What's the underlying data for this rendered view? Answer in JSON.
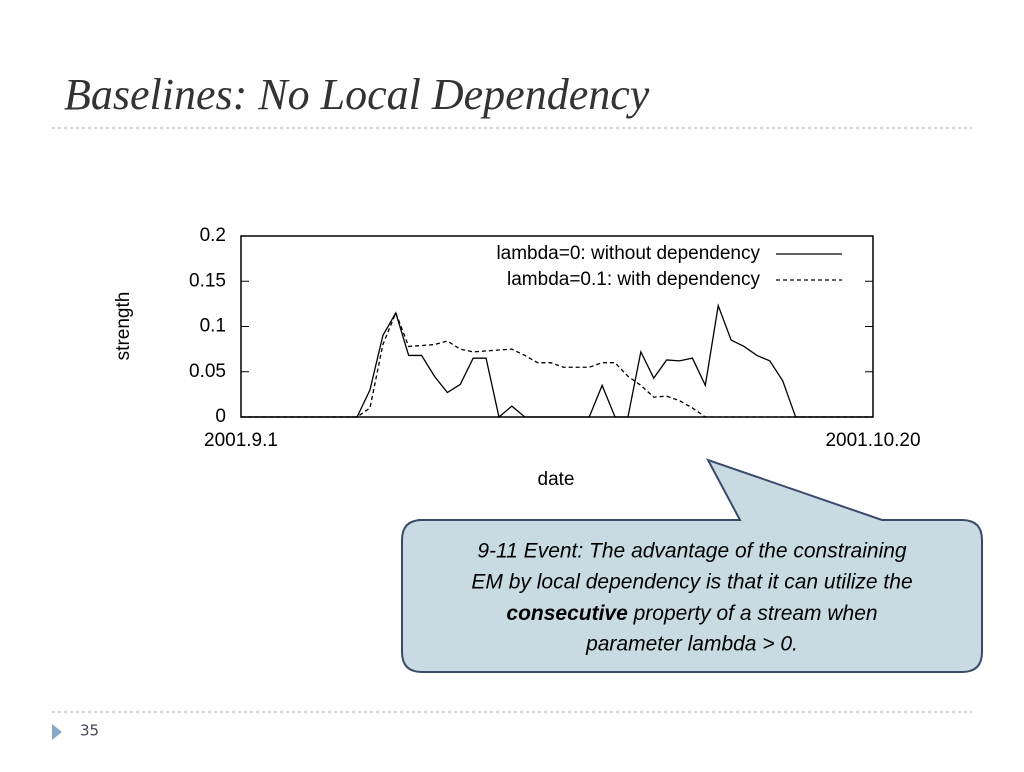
{
  "slide_title": "Baselines: No Local Dependency",
  "page_number": "35",
  "callout": {
    "lines": [
      "9-11 Event: The advantage of the constraining",
      "EM by local dependency is that it can utilize the"
    ],
    "bold": "consecutive",
    "after_bold": " property of a stream when",
    "last_line": "parameter lambda > 0."
  },
  "chart_data": {
    "type": "line",
    "xlabel": "date",
    "ylabel": "strength",
    "x": [
      0,
      1,
      2,
      3,
      4,
      5,
      6,
      7,
      8,
      9,
      10,
      11,
      12,
      13,
      14,
      15,
      16,
      17,
      18,
      19,
      20,
      21,
      22,
      23,
      24,
      25,
      26,
      27,
      28,
      29,
      30,
      31,
      32,
      33,
      34,
      35,
      36,
      37,
      38,
      39,
      40,
      41,
      42,
      43,
      44,
      45,
      46,
      47,
      48,
      49
    ],
    "xlim": [
      0,
      49
    ],
    "xticks": [
      {
        "value": 0,
        "label": "2001.9.1"
      },
      {
        "value": 49,
        "label": "2001.10.20"
      }
    ],
    "ylim": [
      0,
      0.2
    ],
    "yticks": [
      0,
      0.05,
      0.1,
      0.15,
      0.2
    ],
    "legend": "upper right",
    "series": [
      {
        "name": "lambda=0: without dependency",
        "color": "#000000",
        "style": "solid",
        "values": [
          0,
          0,
          0,
          0,
          0,
          0,
          0,
          0,
          0,
          0,
          0.03,
          0.09,
          0.115,
          0.068,
          0.068,
          0.045,
          0.027,
          0.036,
          0.065,
          0.065,
          0,
          0.012,
          0,
          0,
          0,
          0,
          0,
          0,
          0.035,
          0,
          0,
          0.072,
          0.043,
          0.063,
          0.062,
          0.065,
          0.035,
          0.123,
          0.085,
          0.078,
          0.068,
          0.062,
          0.04,
          0,
          0,
          0,
          0,
          0,
          0,
          0
        ]
      },
      {
        "name": "lambda=0.1: with dependency",
        "color": "#000000",
        "style": "dashed",
        "values": [
          0,
          0,
          0,
          0,
          0,
          0,
          0,
          0,
          0,
          0,
          0.01,
          0.08,
          0.115,
          0.078,
          0.079,
          0.08,
          0.084,
          0.075,
          0.072,
          0.073,
          0.074,
          0.075,
          0.068,
          0.06,
          0.06,
          0.055,
          0.055,
          0.055,
          0.06,
          0.06,
          0.045,
          0.035,
          0.022,
          0.023,
          0.018,
          0.01,
          0,
          0,
          0,
          0,
          0,
          0,
          0,
          0,
          0,
          0,
          0,
          0,
          0,
          0
        ]
      }
    ]
  }
}
